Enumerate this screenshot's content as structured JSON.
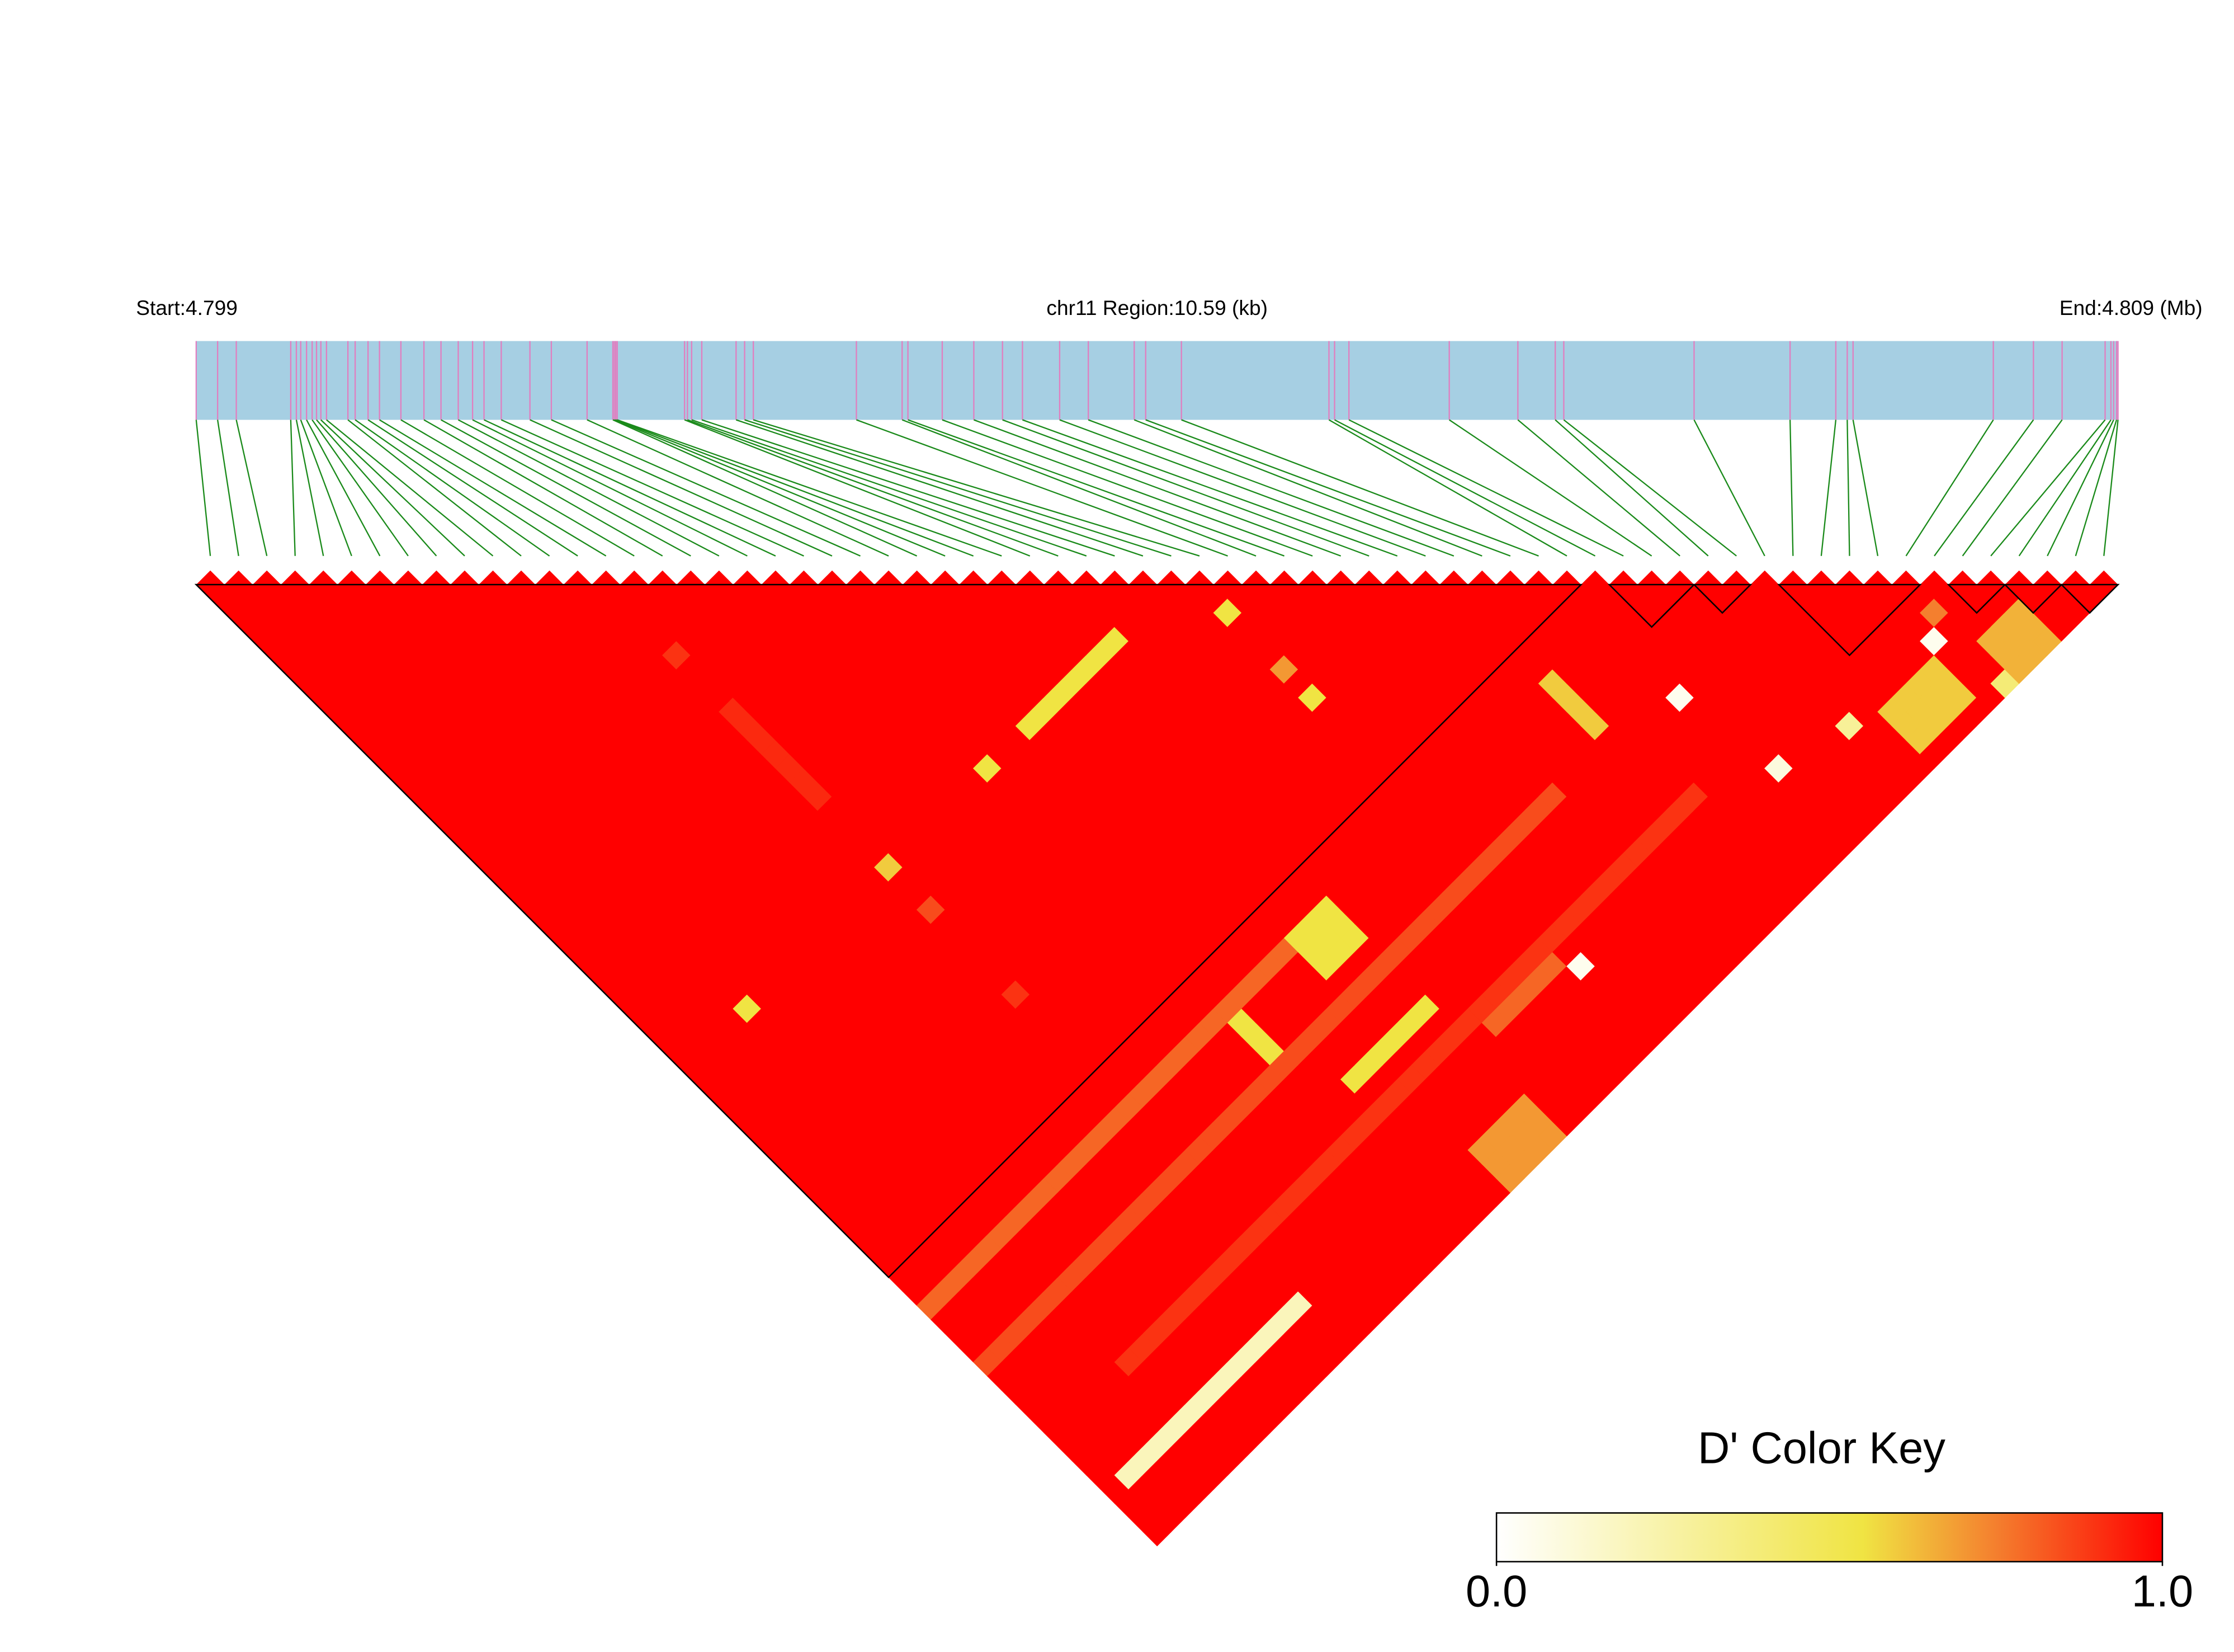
{
  "chart_data": {
    "type": "ld-heatmap",
    "start_label": "Start:4.799",
    "region_label": "chr11 Region:10.59 (kb)",
    "end_label": "End:4.809 (Mb)",
    "xlim": [
      0,
      10.59
    ],
    "positions": [
      0,
      0.118,
      0.221,
      0.521,
      0.552,
      0.576,
      0.608,
      0.639,
      0.663,
      0.687,
      0.718,
      0.836,
      0.876,
      0.947,
      1.01,
      1.128,
      1.255,
      1.349,
      1.444,
      1.523,
      1.586,
      1.681,
      1.839,
      1.957,
      2.154,
      2.296,
      2.304,
      2.312,
      2.32,
      2.691,
      2.707,
      2.73,
      2.786,
      2.975,
      3.022,
      3.07,
      3.638,
      3.89,
      3.922,
      4.111,
      4.285,
      4.443,
      4.553,
      4.758,
      4.916,
      5.169,
      5.232,
      5.429,
      6.242,
      6.273,
      6.352,
      6.905,
      7.283,
      7.489,
      7.536,
      8.254,
      8.783,
      9.035,
      9.098,
      9.13,
      9.903,
      10.124,
      10.282,
      10.519,
      10.551,
      10.566,
      10.582,
      10.59
    ],
    "bar_color": "#a6cfe3",
    "position_line_color": "#e07fc0",
    "connector_color": "#1a8a1a",
    "snp_marker_color": "#ff0000",
    "dprime_default": 1,
    "patches": [
      {
        "i": [
          35,
          35
        ],
        "j": [
          37,
          37
        ],
        "value": 0.55
      },
      {
        "i": [
          24,
          30
        ],
        "j": [
          34,
          34
        ],
        "value": 0.55
      },
      {
        "i": [
          14,
          14
        ],
        "j": [
          19,
          19
        ],
        "value": 0.9
      },
      {
        "i": [
          14,
          14
        ],
        "j": [
          23,
          29
        ],
        "value": 0.92
      },
      {
        "i": [
          35,
          35
        ],
        "j": [
          41,
          41
        ],
        "value": 0.7
      },
      {
        "i": [
          35,
          35
        ],
        "j": [
          43,
          43
        ],
        "value": 0.55
      },
      {
        "i": [
          21,
          21
        ],
        "j": [
          34,
          34
        ],
        "value": 0.55
      },
      {
        "i": [
          14,
          14
        ],
        "j": [
          34,
          34
        ],
        "value": 0.6
      },
      {
        "i": [
          14,
          14
        ],
        "j": [
          37,
          37
        ],
        "value": 0.85
      },
      {
        "i": [
          4,
          4
        ],
        "j": [
          34,
          34
        ],
        "value": 0.55
      },
      {
        "i": [
          14,
          14
        ],
        "j": [
          43,
          43
        ],
        "value": 0.9
      },
      {
        "i": [
          0,
          28
        ],
        "j": [
          51,
          51
        ],
        "value": 0.8
      },
      {
        "i": [
          0,
          40
        ],
        "j": [
          55,
          55
        ],
        "value": 0.85
      },
      {
        "i": [
          5,
          45
        ],
        "j": [
          60,
          60
        ],
        "value": 0.9
      },
      {
        "i": [
          30,
          34
        ],
        "j": [
          61,
          61
        ],
        "value": 0.8
      },
      {
        "i": [
          26,
          28
        ],
        "j": [
          51,
          53
        ],
        "value": 0.55
      },
      {
        "i": [
          23,
          28
        ],
        "j": [
          58,
          58
        ],
        "value": 0.55
      },
      {
        "i": [
          21,
          21
        ],
        "j": [
          52,
          54
        ],
        "value": 0.55
      },
      {
        "i": [
          44,
          44
        ],
        "j": [
          51,
          54
        ],
        "value": 0.6
      },
      {
        "i": [
          1,
          13
        ],
        "j": [
          64,
          64
        ],
        "value": 0.2
      },
      {
        "i": [
          25,
          28
        ],
        "j": [
          65,
          67
        ],
        "value": 0.7
      },
      {
        "i": [
          55,
          58
        ],
        "j": [
          64,
          66
        ],
        "value": 0.6
      },
      {
        "i": [
          61,
          63
        ],
        "j": [
          65,
          67
        ],
        "value": 0.65
      },
      {
        "i": [
          35,
          35
        ],
        "j": [
          62,
          62
        ],
        "value": 0.05
      },
      {
        "i": [
          60,
          60
        ],
        "j": [
          62,
          62
        ],
        "value": 0.75
      },
      {
        "i": [
          60,
          60
        ],
        "j": [
          67,
          67
        ],
        "value": 0.4
      },
      {
        "i": [
          59,
          59
        ],
        "j": [
          63,
          63
        ],
        "value": 0.05
      },
      {
        "i": [
          53,
          53
        ],
        "j": [
          63,
          63
        ],
        "value": 0.3
      },
      {
        "i": [
          48,
          48
        ],
        "j": [
          56,
          56
        ],
        "value": 0.05
      },
      {
        "i": [
          49,
          49
        ],
        "j": [
          62,
          62
        ],
        "value": 0.1
      }
    ],
    "blocks": [
      [
        0,
        48
      ],
      [
        50,
        52
      ],
      [
        53,
        54
      ],
      [
        56,
        60
      ],
      [
        62,
        63
      ],
      [
        64,
        65
      ],
      [
        66,
        67
      ]
    ],
    "key_title": "D' Color Key",
    "zlim": [
      0,
      1
    ],
    "zticks": [
      {
        "value": 0,
        "label": "0.0"
      },
      {
        "value": 1,
        "label": "1.0"
      }
    ],
    "colorscale": [
      [
        0,
        "#ffffff"
      ],
      [
        0.55,
        "#f0e443"
      ],
      [
        0.75,
        "#f47f2e"
      ],
      [
        1,
        "#ff0000"
      ]
    ]
  }
}
